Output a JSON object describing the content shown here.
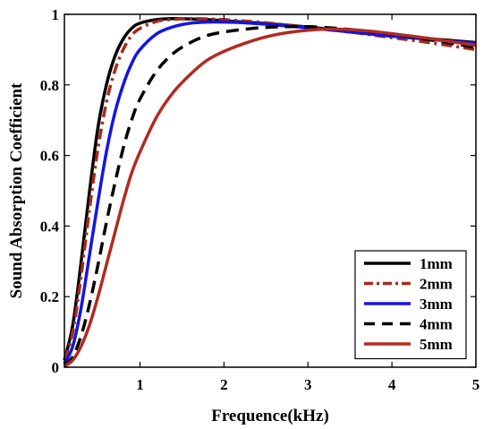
{
  "chart_data": {
    "type": "line",
    "title": "",
    "xlabel": "Frequence(kHz)",
    "ylabel": "Sound Absorption Coefficient",
    "xlim": [
      0.1,
      5
    ],
    "ylim": [
      0,
      1
    ],
    "x_ticks": [
      1,
      2,
      3,
      4,
      5
    ],
    "x_tick_labels": [
      "1",
      "2",
      "3",
      "4",
      "5"
    ],
    "y_ticks": [
      0,
      0.2,
      0.4,
      0.6,
      0.8,
      1
    ],
    "y_tick_labels": [
      "0",
      "0.2",
      "0.4",
      "0.6",
      "0.8",
      "1"
    ],
    "grid": false,
    "legend_position": "bottom-right",
    "x": [
      0.1,
      0.2,
      0.3,
      0.4,
      0.5,
      0.6,
      0.7,
      0.8,
      0.9,
      1.0,
      1.2,
      1.4,
      1.6,
      1.8,
      2.0,
      2.25,
      2.5,
      2.75,
      3.0,
      3.25,
      3.5,
      3.75,
      4.0,
      4.5,
      5.0
    ],
    "series": [
      {
        "name": "1mm",
        "color": "#000000",
        "dash": "solid",
        "values": [
          0.02,
          0.12,
          0.3,
          0.5,
          0.68,
          0.8,
          0.88,
          0.93,
          0.96,
          0.975,
          0.985,
          0.988,
          0.987,
          0.985,
          0.982,
          0.978,
          0.974,
          0.969,
          0.964,
          0.958,
          0.952,
          0.946,
          0.94,
          0.93,
          0.92
        ]
      },
      {
        "name": "2mm",
        "color": "#a52a1a",
        "dash": "dashdot",
        "values": [
          0.02,
          0.1,
          0.26,
          0.45,
          0.62,
          0.75,
          0.84,
          0.9,
          0.94,
          0.96,
          0.98,
          0.986,
          0.988,
          0.987,
          0.985,
          0.981,
          0.976,
          0.97,
          0.964,
          0.957,
          0.95,
          0.942,
          0.934,
          0.918,
          0.9
        ]
      },
      {
        "name": "3mm",
        "color": "#1414e6",
        "dash": "solid",
        "values": [
          0.01,
          0.06,
          0.17,
          0.32,
          0.47,
          0.61,
          0.72,
          0.8,
          0.86,
          0.9,
          0.945,
          0.965,
          0.975,
          0.978,
          0.978,
          0.976,
          0.972,
          0.967,
          0.962,
          0.956,
          0.95,
          0.944,
          0.938,
          0.928,
          0.918
        ]
      },
      {
        "name": "4mm",
        "color": "#000000",
        "dash": "dashed",
        "values": [
          0.005,
          0.03,
          0.09,
          0.18,
          0.29,
          0.41,
          0.52,
          0.62,
          0.7,
          0.76,
          0.84,
          0.89,
          0.92,
          0.94,
          0.95,
          0.958,
          0.963,
          0.965,
          0.965,
          0.962,
          0.957,
          0.951,
          0.944,
          0.926,
          0.906
        ]
      },
      {
        "name": "5mm",
        "color": "#b22a20",
        "dash": "solid",
        "values": [
          0.003,
          0.02,
          0.06,
          0.12,
          0.2,
          0.29,
          0.38,
          0.47,
          0.55,
          0.61,
          0.71,
          0.78,
          0.83,
          0.87,
          0.895,
          0.918,
          0.936,
          0.948,
          0.955,
          0.958,
          0.957,
          0.952,
          0.945,
          0.93,
          0.912
        ]
      }
    ]
  }
}
